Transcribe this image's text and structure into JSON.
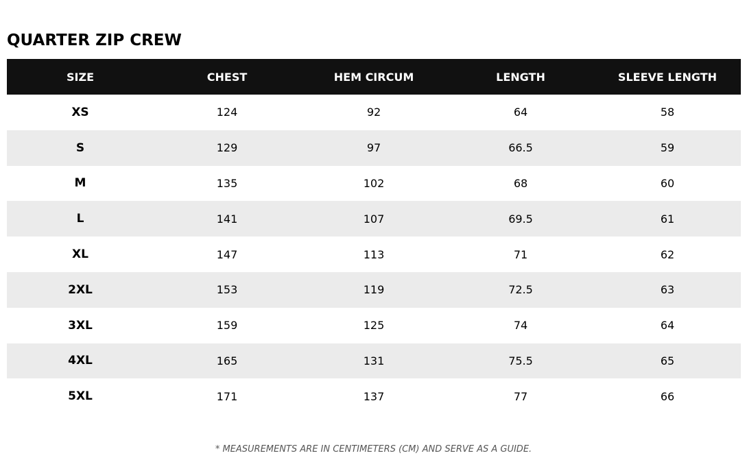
{
  "title": "QUARTER ZIP CREW",
  "table": {
    "header": [
      "SIZE",
      "CHEST",
      "HEM CIRCUM",
      "LENGTH",
      "SLEEVE LENGTH"
    ],
    "rows": [
      [
        "XS",
        "124",
        "92",
        "64",
        "58"
      ],
      [
        "S",
        "129",
        "97",
        "66.5",
        "59"
      ],
      [
        "M",
        "135",
        "102",
        "68",
        "60"
      ],
      [
        "L",
        "141",
        "107",
        "69.5",
        "61"
      ],
      [
        "XL",
        "147",
        "113",
        "71",
        "62"
      ],
      [
        "2XL",
        "153",
        "119",
        "72.5",
        "63"
      ],
      [
        "3XL",
        "159",
        "125",
        "74",
        "64"
      ],
      [
        "4XL",
        "165",
        "131",
        "75.5",
        "65"
      ],
      [
        "5XL",
        "171",
        "137",
        "77",
        "66"
      ]
    ]
  },
  "footnote": "* MEASUREMENTS ARE IN CENTIMETERS (CM) AND SERVE AS A GUIDE."
}
